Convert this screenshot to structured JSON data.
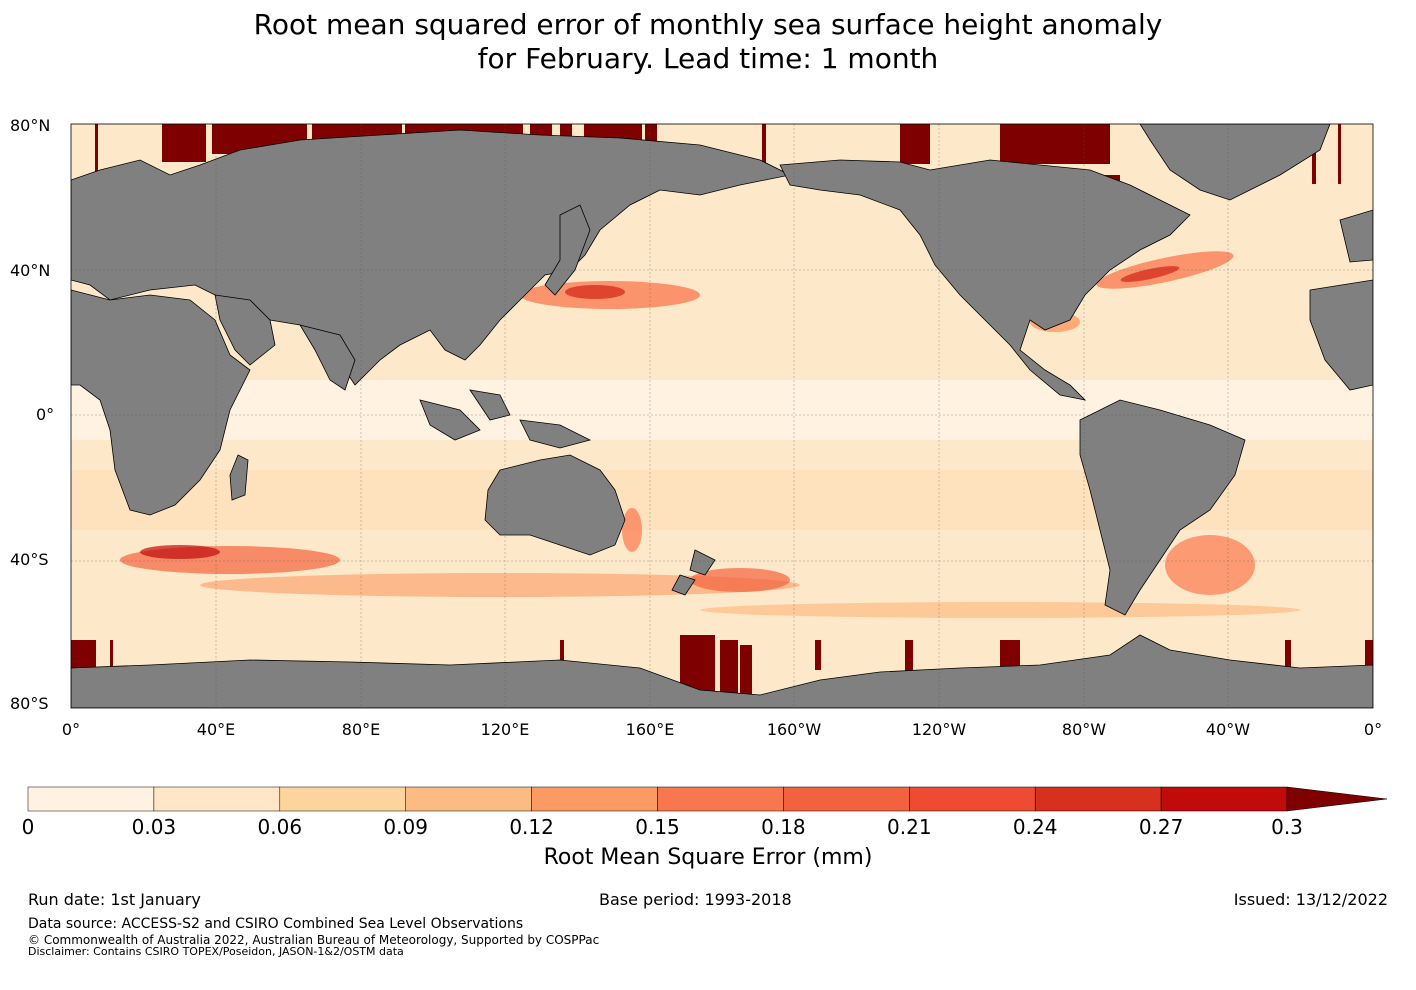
{
  "title": {
    "line1": "Root mean squared error of monthly sea surface height anomaly",
    "line2": "for February. Lead time: 1 month"
  },
  "map": {
    "lat_labels": [
      "80°N",
      "40°N",
      "0°",
      "40°S",
      "80°S"
    ],
    "lon_labels": [
      "0°",
      "40°E",
      "80°E",
      "120°E",
      "160°E",
      "160°W",
      "120°W",
      "80°W",
      "40°W",
      "0°"
    ],
    "land_color": "#808080",
    "ocean_base_color": "#fde9c9"
  },
  "colorbar": {
    "ticks": [
      "0",
      "0.03",
      "0.06",
      "0.09",
      "0.12",
      "0.15",
      "0.18",
      "0.21",
      "0.24",
      "0.27",
      "0.3"
    ],
    "colors": [
      "#fff2e0",
      "#fee6c6",
      "#fdd49e",
      "#fdbb84",
      "#fc9a63",
      "#f9774e",
      "#f3623f",
      "#ef4b33",
      "#d7301f",
      "#c10a0a",
      "#a40000",
      "#7f0000"
    ],
    "label": "Root Mean Square Error (mm)",
    "extend": "max"
  },
  "footer": {
    "run_date": "Run date: 1st January",
    "base_period": "Base period: 1993-2018",
    "issued": "Issued: 13/12/2022",
    "data_source": "Data source: ACCESS-S2 and CSIRO Combined Sea Level Observations",
    "copyright": "© Commonwealth of Australia 2022, Australian Bureau of Meteorology, Supported by COSPPac",
    "disclaimer": "Disclaimer: Contains CSIRO TOPEX/Poseidon, JASON-1&2/OSTM data"
  }
}
